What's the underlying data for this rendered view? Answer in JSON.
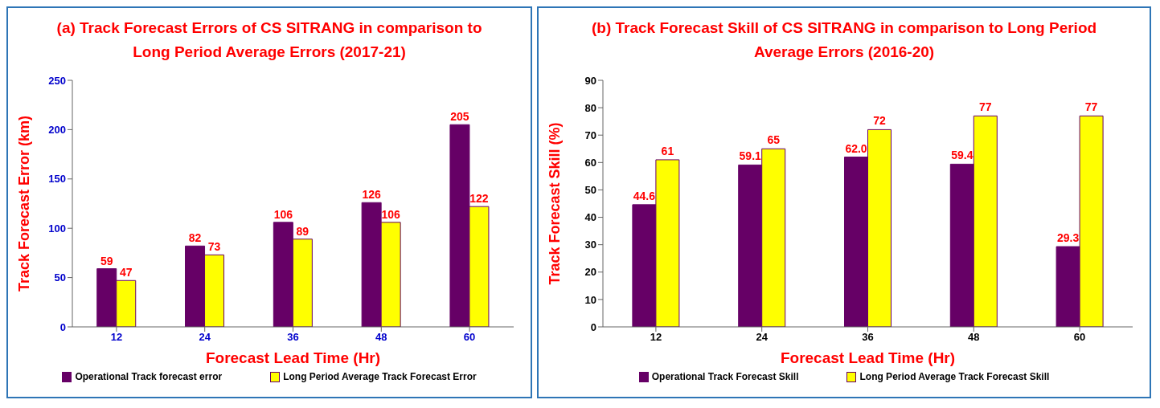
{
  "chart_data": [
    {
      "type": "bar",
      "title": "(a) Track Forecast Errors of  CS SITRANG  in comparison to Long Period Average Errors (2017-21)",
      "xlabel": "Forecast Lead Time (Hr)",
      "ylabel": "Track Forecast Error (km)",
      "categories": [
        "12",
        "24",
        "36",
        "48",
        "60"
      ],
      "series": [
        {
          "name": "Operational Track forecast error",
          "color": "#660066",
          "values": [
            59,
            82,
            106,
            126,
            205
          ]
        },
        {
          "name": "Long Period Average Track Forecast Error",
          "color": "#ffff00",
          "values": [
            47,
            73,
            89,
            106,
            122
          ]
        }
      ],
      "ylim": [
        0,
        250
      ],
      "yticks": [
        0,
        50,
        100,
        150,
        200,
        250
      ],
      "data_labels": true,
      "legend": "bottom",
      "grid": false
    },
    {
      "type": "bar",
      "title": "(b) Track Forecast  Skill of  CS SITRANG in comparison to Long Period Average Errors (2016-20)",
      "xlabel": "Forecast Lead Time (Hr)",
      "ylabel": "Track Forecast Skill (%)",
      "categories": [
        "12",
        "24",
        "36",
        "48",
        "60"
      ],
      "series": [
        {
          "name": "Operational Track Forecast Skill",
          "color": "#660066",
          "values": [
            44.6,
            59.1,
            62.0,
            59.4,
            29.3
          ],
          "value_labels": [
            "44.6",
            "59.1",
            "62.0",
            "59.4",
            "29.3"
          ]
        },
        {
          "name": "Long Period Average Track Forecast Skill",
          "color": "#ffff00",
          "values": [
            61,
            65,
            72,
            77,
            77
          ],
          "value_labels": [
            "61",
            "65",
            "72",
            "77",
            "77"
          ]
        }
      ],
      "ylim": [
        0,
        90
      ],
      "yticks": [
        0,
        10,
        20,
        30,
        40,
        50,
        60,
        70,
        80,
        90
      ],
      "legend": "bottom",
      "grid": false
    }
  ]
}
